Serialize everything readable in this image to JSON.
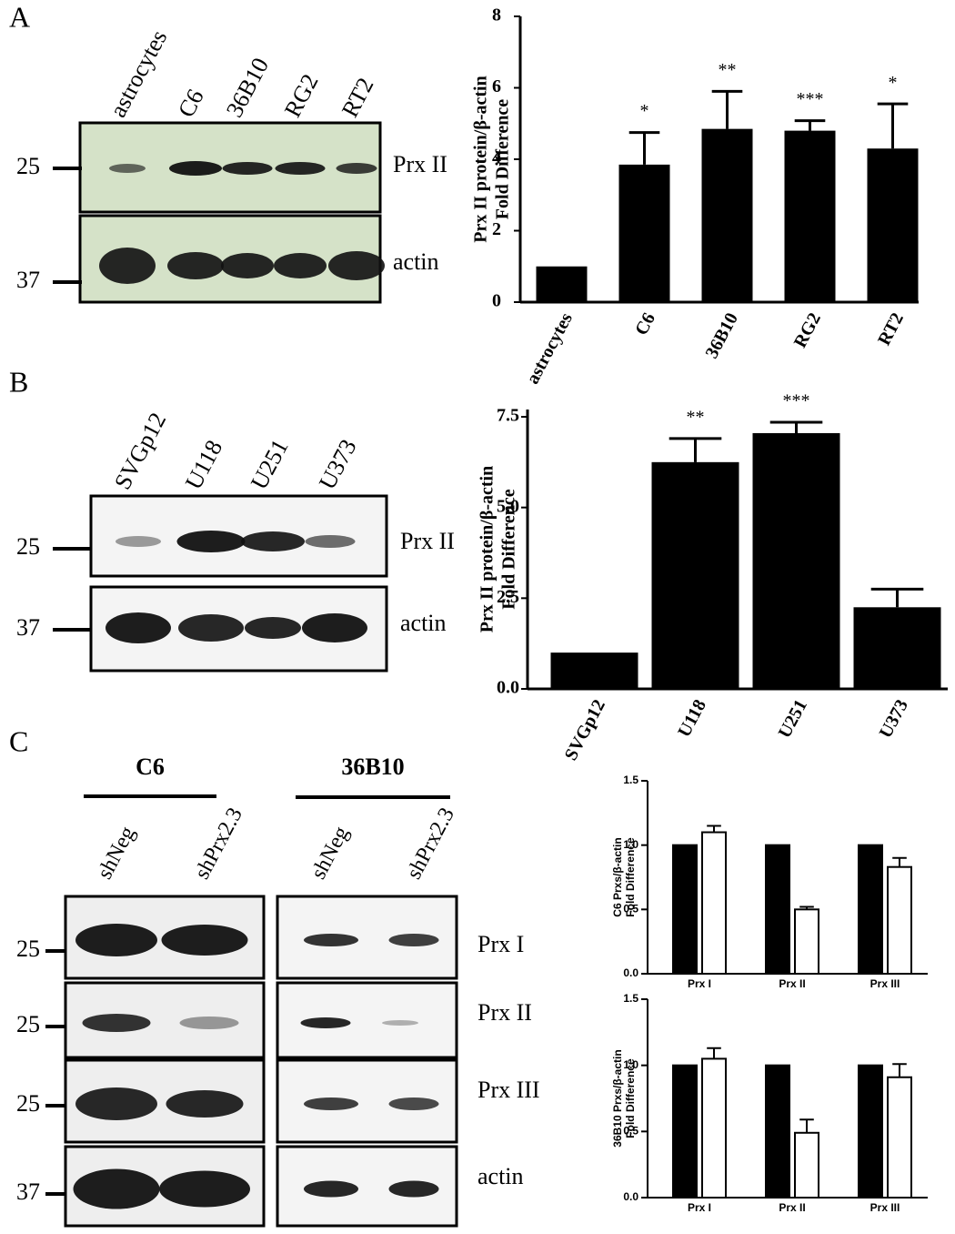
{
  "panels": {
    "A": {
      "label": "A",
      "lanes": [
        "astrocytes",
        "C6",
        "36B10",
        "RG2",
        "RT2"
      ],
      "bands": [
        "Prx II",
        "actin"
      ],
      "markers": [
        25,
        37
      ]
    },
    "B": {
      "label": "B",
      "lanes": [
        "SVGp12",
        "U118",
        "U251",
        "U373"
      ],
      "bands": [
        "Prx II",
        "actin"
      ],
      "markers": [
        25,
        37
      ]
    },
    "C": {
      "label": "C",
      "headers": [
        "C6",
        "36B10"
      ],
      "lanes": [
        "shNeg",
        "shPrx2.3",
        "shNeg",
        "shPrx2.3"
      ],
      "bands": [
        "Prx I",
        "Prx II",
        "Prx III",
        "actin"
      ],
      "markers": [
        25,
        25,
        25,
        37
      ]
    }
  },
  "chart_data": [
    {
      "type": "bar",
      "ylabel": [
        "Prx II protein/β-actin",
        "Fold Difference"
      ],
      "categories": [
        "astrocytes",
        "C6",
        "36B10",
        "RG2",
        "RT2"
      ],
      "values": [
        1.0,
        3.85,
        4.85,
        4.8,
        4.3
      ],
      "errors": [
        0,
        0.9,
        1.05,
        0.28,
        1.25
      ],
      "annotations": [
        null,
        "*",
        "**",
        "***",
        "*"
      ],
      "color": "#000000",
      "ylim": [
        0,
        8
      ],
      "yticks": [
        0,
        2,
        4,
        6,
        8
      ]
    },
    {
      "type": "bar",
      "ylabel": [
        "Prx II protein/β-actin",
        "Fold Difference"
      ],
      "categories": [
        "SVGp12",
        "U118",
        "U251",
        "U373"
      ],
      "values": [
        1.0,
        6.25,
        7.05,
        2.25
      ],
      "errors": [
        0,
        0.65,
        0.3,
        0.5
      ],
      "annotations": [
        null,
        "**",
        "***",
        null
      ],
      "color": "#000000",
      "ylim": [
        0,
        7.5
      ],
      "yticks": [
        {
          "value": 0,
          "label": "0.0"
        },
        2.5,
        {
          "value": 5,
          "label": "5.0"
        },
        7.5
      ]
    },
    {
      "type": "grouped-bar",
      "ylabel": [
        "C6 Prxs/β-actin",
        "Fold Difference"
      ],
      "categories": [
        "Prx  I",
        "Prx II",
        "Prx III"
      ],
      "series": [
        {
          "color": "#000000",
          "values": [
            1.0,
            1.0,
            1.0
          ],
          "errors": [
            0,
            0,
            0
          ]
        },
        {
          "color": "#ffffff",
          "values": [
            1.1,
            0.5,
            0.83
          ],
          "errors": [
            0.05,
            0.02,
            0.07
          ]
        }
      ],
      "ylim": [
        0,
        1.5
      ],
      "yticks": [
        {
          "value": 0,
          "label": "0.0"
        },
        0.5,
        {
          "value": 1,
          "label": "1.0"
        },
        1.5
      ]
    },
    {
      "type": "grouped-bar",
      "ylabel": [
        "36B10 Prxs/β-actin",
        "Fold Difference"
      ],
      "categories": [
        "Prx  I",
        "Prx II",
        "Prx III"
      ],
      "series": [
        {
          "color": "#000000",
          "values": [
            1.0,
            1.0,
            1.0
          ],
          "errors": [
            0,
            0,
            0
          ]
        },
        {
          "color": "#ffffff",
          "values": [
            1.05,
            0.49,
            0.91
          ],
          "errors": [
            0.08,
            0.1,
            0.1
          ]
        }
      ],
      "ylim": [
        0,
        1.5
      ],
      "yticks": [
        {
          "value": 0,
          "label": "0.0"
        },
        0.5,
        {
          "value": 1,
          "label": "1.0"
        },
        1.5
      ]
    }
  ]
}
